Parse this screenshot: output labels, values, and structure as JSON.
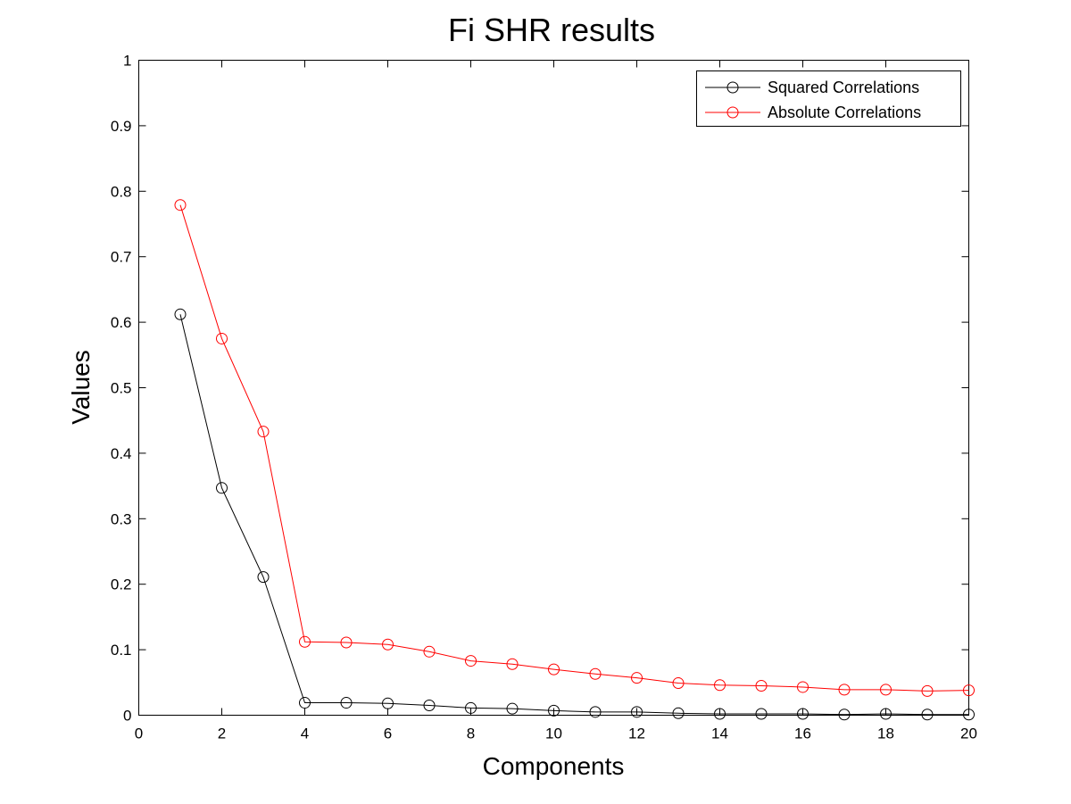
{
  "chart_data": {
    "type": "line",
    "title": "Fi SHR results",
    "xlabel": "Components",
    "ylabel": "Values",
    "xlim": [
      0,
      20
    ],
    "ylim": [
      0,
      1
    ],
    "x_ticks": [
      "0",
      "2",
      "4",
      "6",
      "8",
      "10",
      "12",
      "14",
      "16",
      "18",
      "20"
    ],
    "y_ticks": [
      "0",
      "0.1",
      "0.2",
      "0.3",
      "0.4",
      "0.5",
      "0.6",
      "0.7",
      "0.8",
      "0.9",
      "1"
    ],
    "grid": false,
    "legend_position": "top-right",
    "x": [
      1,
      2,
      3,
      4,
      5,
      6,
      7,
      8,
      9,
      10,
      11,
      12,
      13,
      14,
      15,
      16,
      17,
      18,
      19,
      20
    ],
    "series": [
      {
        "name": "Squared Correlations",
        "color": "#000000",
        "marker": "circle",
        "values": [
          0.612,
          0.347,
          0.211,
          0.019,
          0.019,
          0.018,
          0.015,
          0.011,
          0.01,
          0.007,
          0.005,
          0.005,
          0.003,
          0.002,
          0.002,
          0.002,
          0.001,
          0.002,
          0.001,
          0.001
        ]
      },
      {
        "name": "Absolute Correlations",
        "color": "#ff0000",
        "marker": "circle",
        "values": [
          0.779,
          0.575,
          0.433,
          0.112,
          0.111,
          0.108,
          0.097,
          0.083,
          0.078,
          0.07,
          0.063,
          0.057,
          0.049,
          0.046,
          0.045,
          0.043,
          0.039,
          0.039,
          0.037,
          0.038
        ]
      }
    ]
  }
}
